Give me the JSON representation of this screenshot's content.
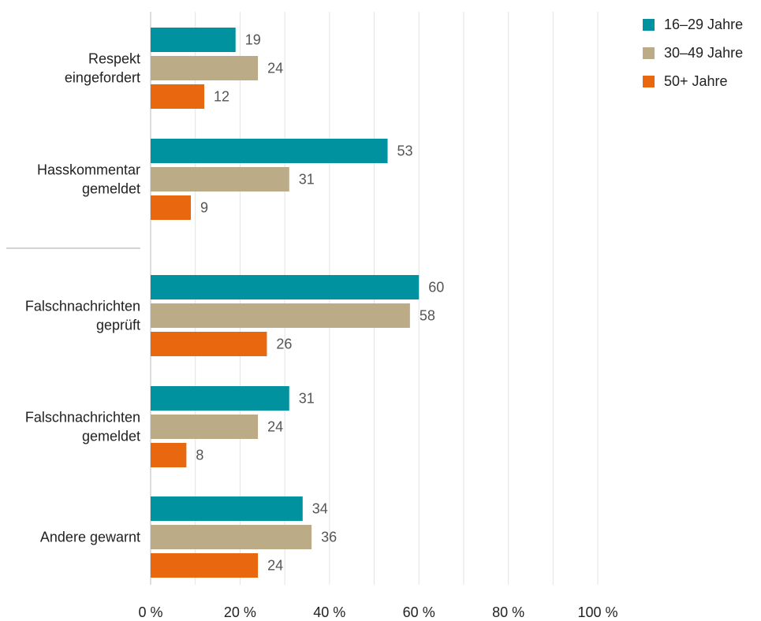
{
  "chart_data": {
    "type": "bar",
    "orientation": "horizontal",
    "title": "",
    "xlabel": "",
    "ylabel": "",
    "xlim": [
      0,
      100
    ],
    "x_ticks": [
      "0 %",
      "20 %",
      "40 %",
      "60 %",
      "80 %",
      "100 %"
    ],
    "grid": "vertical",
    "legend_position": "top-right",
    "categories": [
      [
        "Respekt",
        "eingefordert"
      ],
      [
        "Hasskommentar",
        "gemeldet"
      ],
      [
        "Falschnachrichten",
        "geprüft"
      ],
      [
        "Falschnachrichten",
        "gemeldet"
      ],
      [
        "Andere gewarnt"
      ]
    ],
    "series": [
      {
        "name": "16–29 Jahre",
        "color": "#00939f",
        "values": [
          19,
          53,
          60,
          31,
          34
        ]
      },
      {
        "name": "30–49 Jahre",
        "color": "#bbab87",
        "values": [
          24,
          31,
          58,
          24,
          36
        ]
      },
      {
        "name": "50+ Jahre",
        "color": "#e8670f",
        "values": [
          12,
          9,
          26,
          8,
          24
        ]
      }
    ]
  }
}
